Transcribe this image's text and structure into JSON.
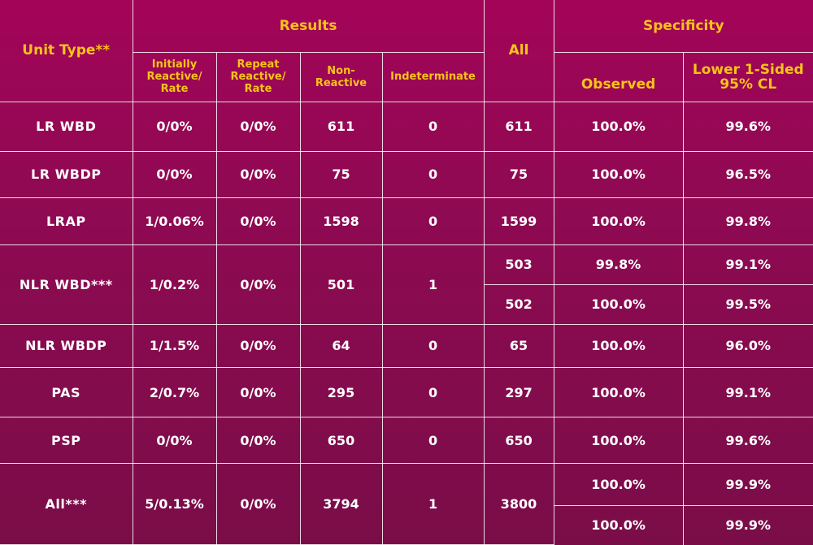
{
  "header": {
    "unit_type": "Unit Type**",
    "results": "Results",
    "all": "All",
    "specificity": "Specificity",
    "initially_reactive": [
      "Initially",
      "Reactive/",
      "Rate"
    ],
    "repeat_reactive": [
      "Repeat",
      "Reactive/",
      "Rate"
    ],
    "non_reactive": [
      "Non-",
      "Reactive"
    ],
    "indeterminate": "Indeterminate",
    "observed": "Observed",
    "lower_cl": [
      "Lower 1-Sided",
      "95% CL"
    ]
  },
  "rows": [
    {
      "unit": "LR WBD",
      "initially": "0/0%",
      "repeat": "0/0%",
      "non_reactive": "611",
      "indeterminate": "0",
      "all": "611",
      "observed": "100.0%",
      "lower": "99.6%"
    },
    {
      "unit": "LR WBDP",
      "initially": "0/0%",
      "repeat": "0/0%",
      "non_reactive": "75",
      "indeterminate": "0",
      "all": "75",
      "observed": "100.0%",
      "lower": "96.5%"
    },
    {
      "unit": "LRAP",
      "initially": "1/0.06%",
      "repeat": "0/0%",
      "non_reactive": "1598",
      "indeterminate": "0",
      "all": "1599",
      "observed": "100.0%",
      "lower": "99.8%"
    },
    {
      "unit": "NLR WBD***",
      "initially": "1/0.2%",
      "repeat": "0/0%",
      "non_reactive": "501",
      "indeterminate": "1",
      "sub": [
        {
          "all": "503",
          "observed": "99.8%",
          "lower": "99.1%"
        },
        {
          "all": "502",
          "observed": "100.0%",
          "lower": "99.5%"
        }
      ]
    },
    {
      "unit": "NLR WBDP",
      "initially": "1/1.5%",
      "repeat": "0/0%",
      "non_reactive": "64",
      "indeterminate": "0",
      "all": "65",
      "observed": "100.0%",
      "lower": "96.0%"
    },
    {
      "unit": "PAS",
      "initially": "2/0.7%",
      "repeat": "0/0%",
      "non_reactive": "295",
      "indeterminate": "0",
      "all": "297",
      "observed": "100.0%",
      "lower": "99.1%"
    },
    {
      "unit": "PSP",
      "initially": "0/0%",
      "repeat": "0/0%",
      "non_reactive": "650",
      "indeterminate": "0",
      "all": "650",
      "observed": "100.0%",
      "lower": "99.6%"
    },
    {
      "unit": "All***",
      "initially": "5/0.13%",
      "repeat": "0/0%",
      "non_reactive": "3794",
      "indeterminate": "1",
      "all": "3800",
      "sub": [
        {
          "observed": "100.0%",
          "lower": "99.9%"
        },
        {
          "observed": "100.0%",
          "lower": "99.9%"
        }
      ]
    }
  ],
  "colors": {
    "background": "#9a0755",
    "header_text": "#f6c318",
    "body_text": "#ffffff",
    "grid": "#ffffff"
  }
}
